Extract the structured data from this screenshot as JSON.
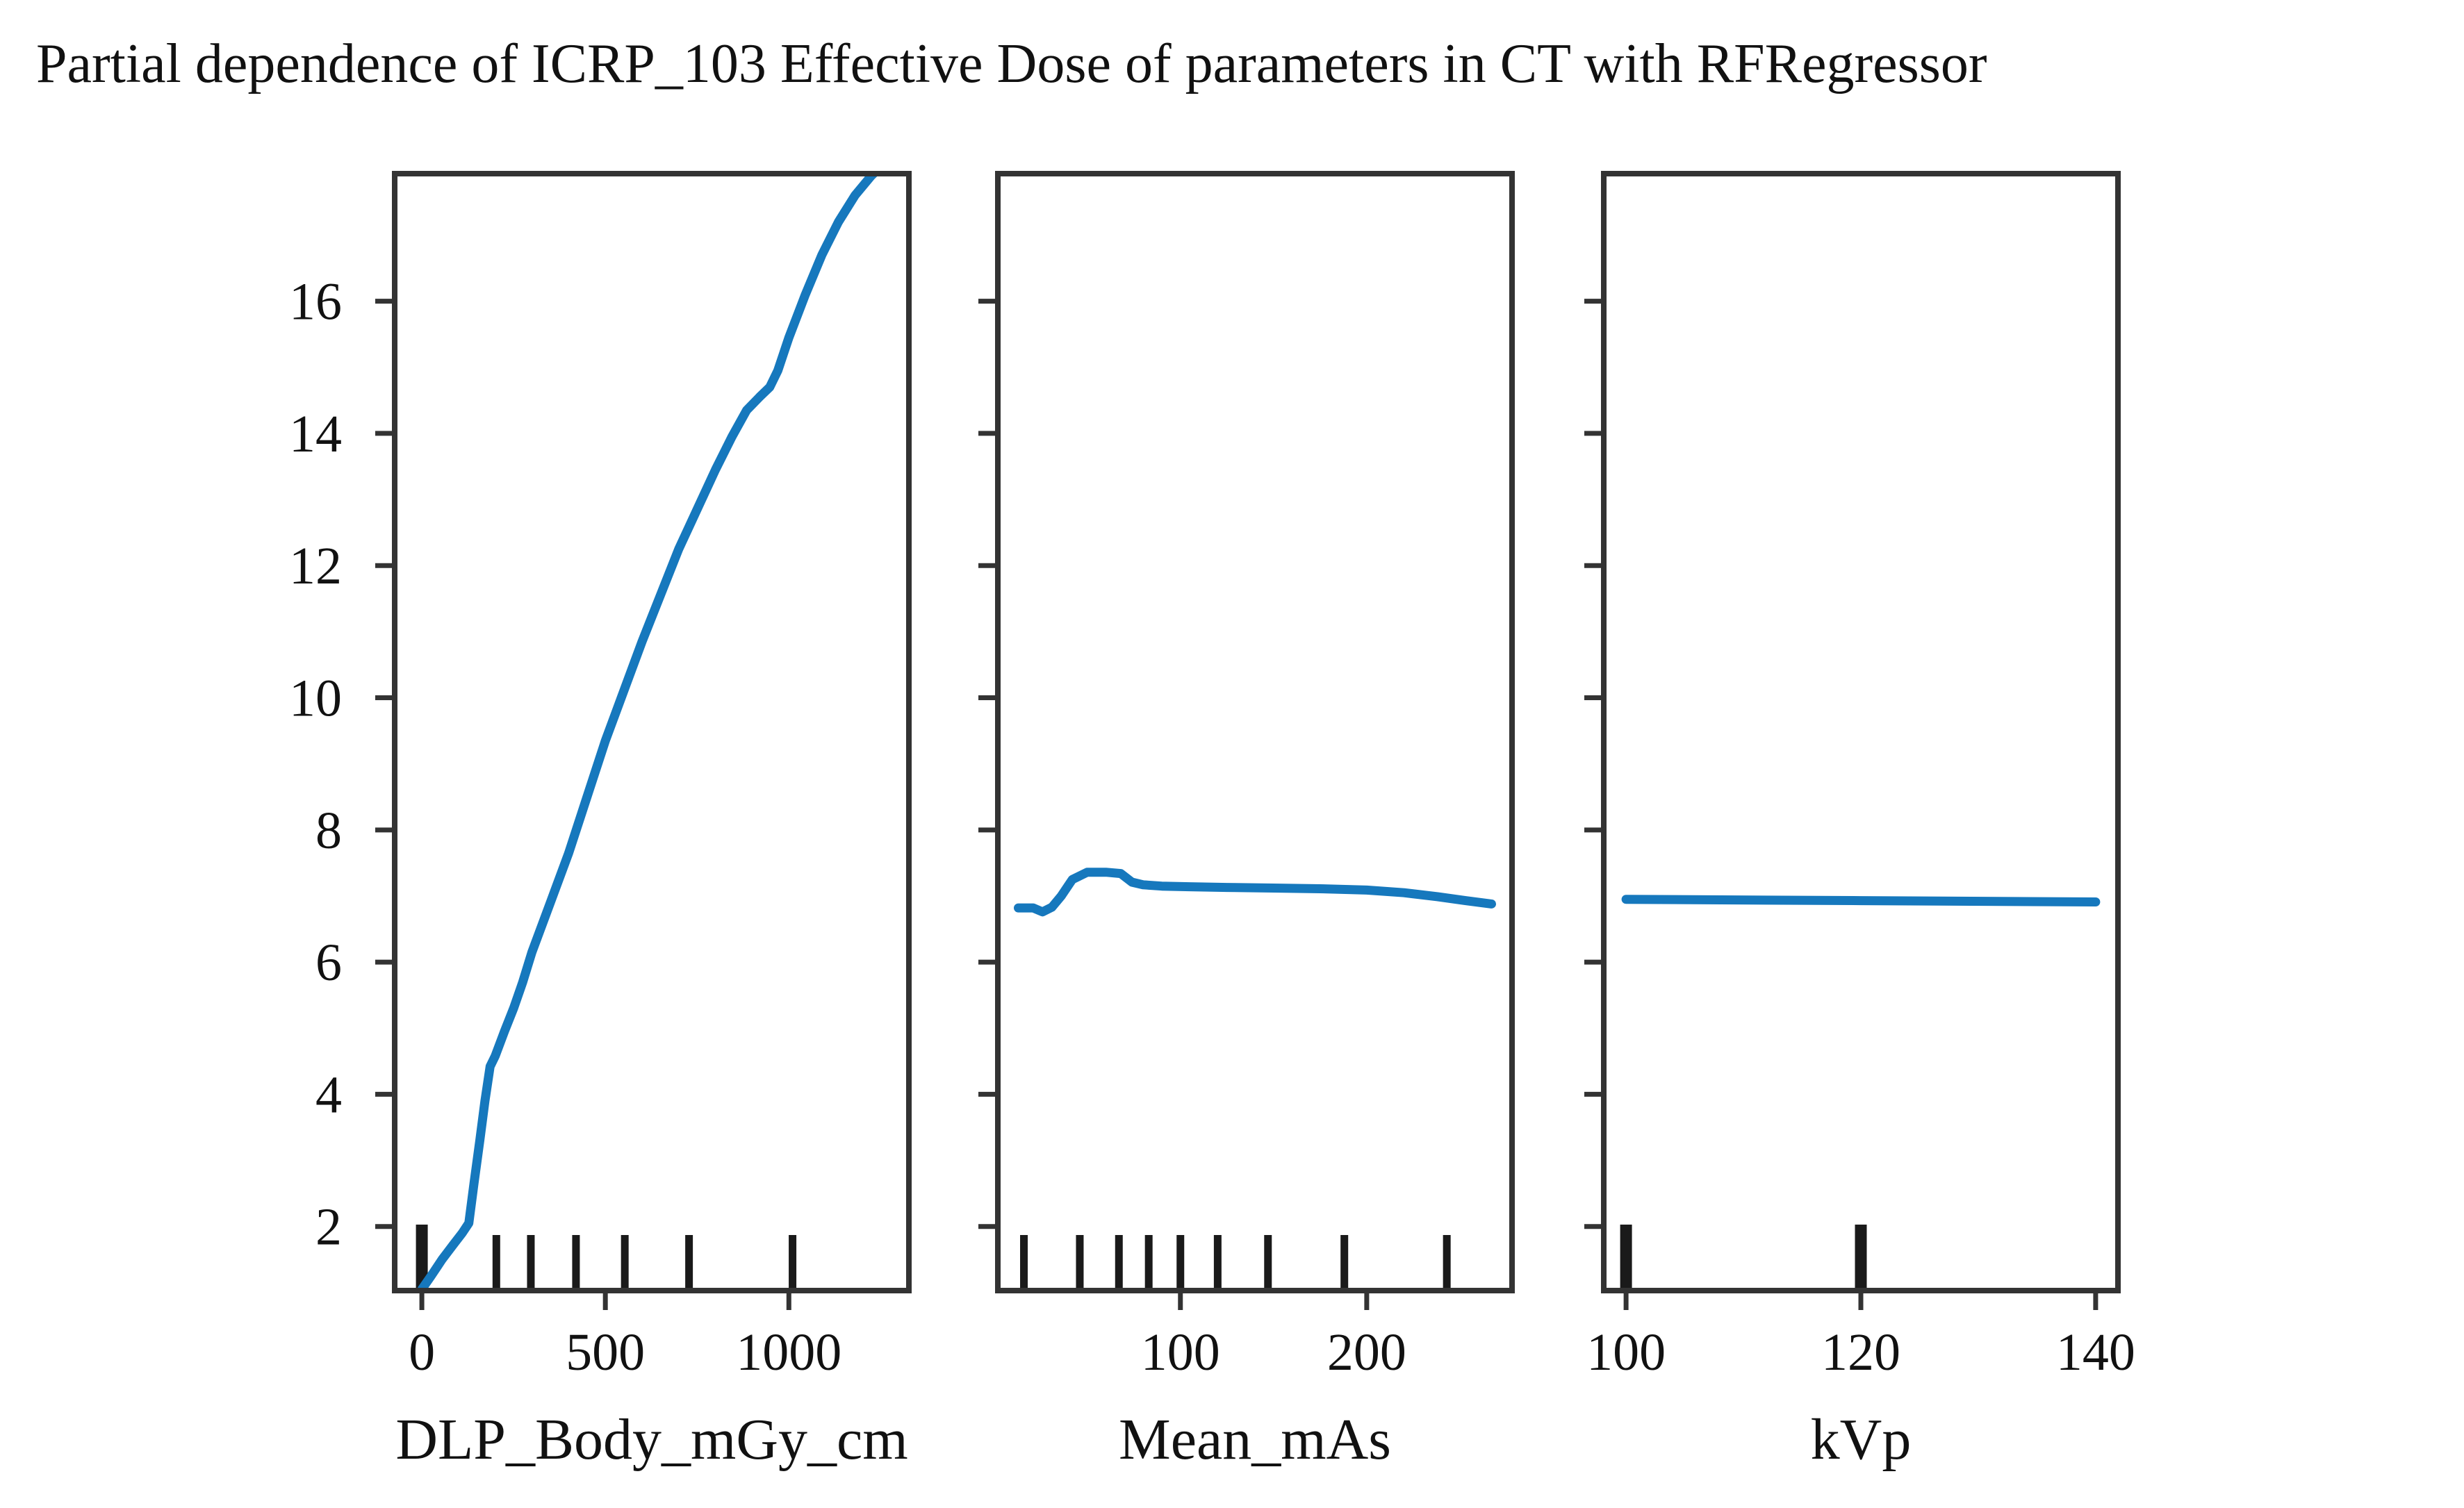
{
  "title": "Partial dependence of ICRP_103 Effective Dose of parameters in CT with RFRegressor",
  "colors": {
    "line": "#1678bd",
    "axis": "#333333",
    "rug": "#1a1a1a",
    "text": "#111111",
    "background": "#ffffff"
  },
  "chart_data": [
    {
      "type": "line",
      "xlabel": "DLP_Body_mGy_cm",
      "ylabel": "",
      "xlim": [
        -74,
        1327
      ],
      "ylim": [
        1.03,
        17.93
      ],
      "xticks": [
        0,
        500,
        1000
      ],
      "yticks": [
        2,
        4,
        6,
        8,
        10,
        12,
        14,
        16
      ],
      "show_ytick_labels": true,
      "grid": false,
      "x": [
        0,
        25,
        55,
        85,
        110,
        128,
        142,
        158,
        172,
        186,
        200,
        225,
        250,
        275,
        300,
        350,
        400,
        450,
        500,
        550,
        600,
        650,
        700,
        750,
        800,
        845,
        885,
        920,
        948,
        970,
        1000,
        1045,
        1090,
        1135,
        1180,
        1225,
        1272
      ],
      "y": [
        1.05,
        1.25,
        1.5,
        1.72,
        1.9,
        2.05,
        2.65,
        3.3,
        3.9,
        4.42,
        4.58,
        4.95,
        5.3,
        5.7,
        6.15,
        6.9,
        7.65,
        8.5,
        9.35,
        10.1,
        10.85,
        11.55,
        12.25,
        12.85,
        13.45,
        13.95,
        14.35,
        14.55,
        14.7,
        14.95,
        15.45,
        16.1,
        16.7,
        17.2,
        17.6,
        17.9,
        18.15
      ],
      "rug_x": [
        0,
        203,
        297,
        420,
        553,
        728,
        1010
      ],
      "rug_bold_x": [
        0
      ]
    },
    {
      "type": "line",
      "xlabel": "Mean_mAs",
      "ylabel": "",
      "xlim": [
        2,
        278
      ],
      "ylim": [
        1.03,
        17.93
      ],
      "xticks": [
        100,
        200
      ],
      "yticks": [
        2,
        4,
        6,
        8,
        10,
        12,
        14,
        16
      ],
      "show_ytick_labels": false,
      "grid": false,
      "x": [
        13,
        21,
        26,
        31,
        36,
        42,
        50,
        60,
        68,
        74,
        80,
        90,
        105,
        125,
        150,
        175,
        200,
        220,
        238,
        253,
        267
      ],
      "y": [
        6.82,
        6.82,
        6.76,
        6.83,
        7.0,
        7.25,
        7.36,
        7.36,
        7.34,
        7.21,
        7.17,
        7.15,
        7.14,
        7.13,
        7.12,
        7.11,
        7.09,
        7.05,
        6.99,
        6.93,
        6.88
      ],
      "rug_x": [
        16,
        46,
        67,
        83,
        100,
        120,
        147,
        188,
        243
      ],
      "rug_bold_x": []
    },
    {
      "type": "line",
      "xlabel": "kVp",
      "ylabel": "",
      "xlim": [
        98.1,
        141.9
      ],
      "ylim": [
        1.03,
        17.93
      ],
      "xticks": [
        100,
        120,
        140
      ],
      "yticks": [
        2,
        4,
        6,
        8,
        10,
        12,
        14,
        16
      ],
      "show_ytick_labels": false,
      "grid": false,
      "x": [
        100,
        120,
        140
      ],
      "y": [
        6.95,
        6.93,
        6.91
      ],
      "rug_x": [
        100,
        120
      ],
      "rug_bold_x": [
        100,
        120
      ]
    }
  ]
}
